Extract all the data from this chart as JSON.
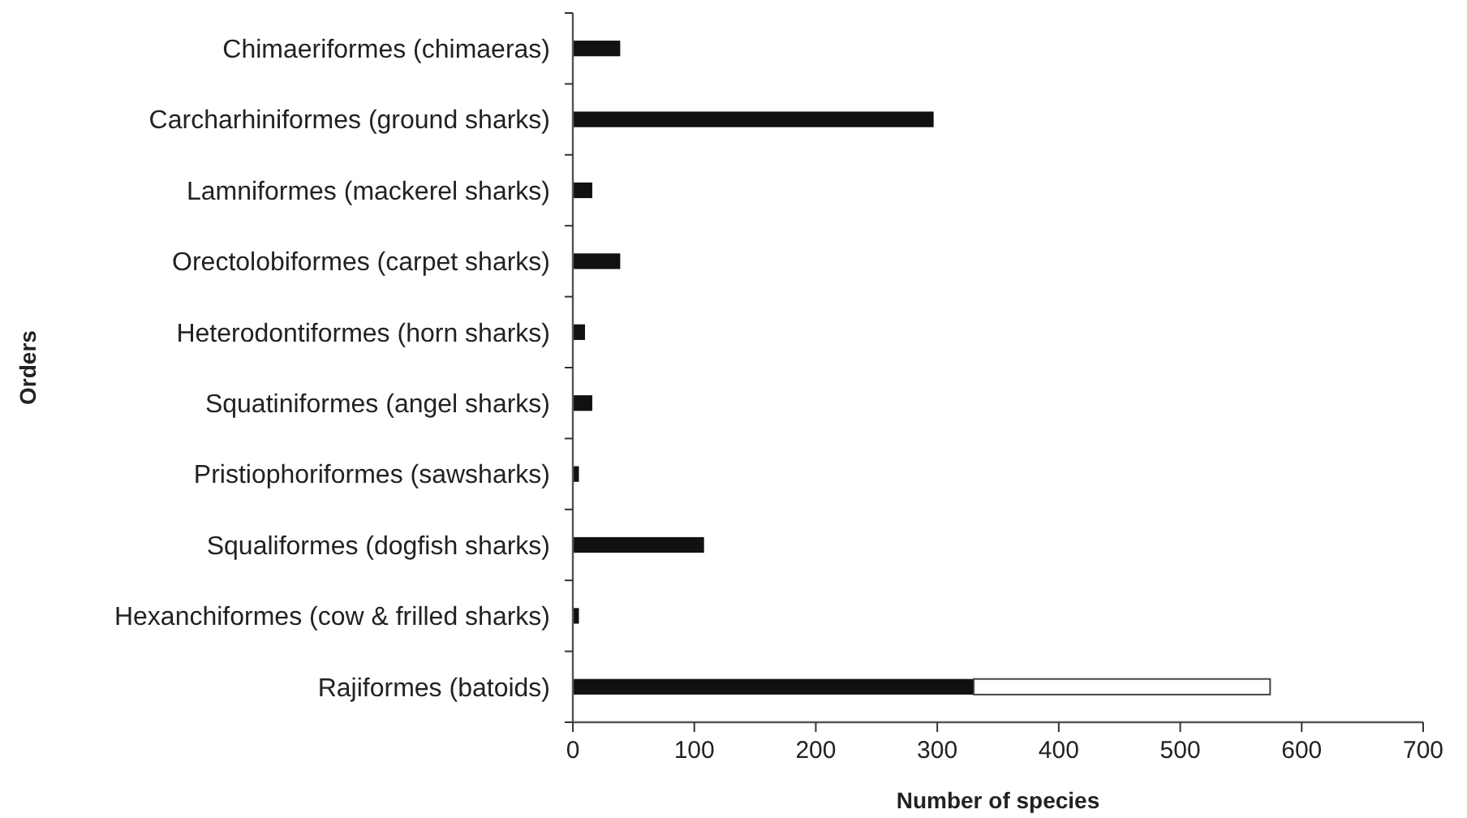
{
  "chart_data": {
    "type": "bar",
    "orientation": "horizontal",
    "stacked": true,
    "xlabel": "Number of species",
    "ylabel": "Orders",
    "categories": [
      "Chimaeriformes (chimaeras)",
      "Carcharhiniformes (ground sharks)",
      "Lamniformes (mackerel sharks)",
      "Orectolobiformes (carpet sharks)",
      "Heterodontiformes (horn sharks)",
      "Squatiniformes (angel sharks)",
      "Pristiophoriformes (sawsharks)",
      "Squaliformes (dogfish sharks)",
      "Hexanchiformes (cow & frilled sharks)",
      "Rajiformes (batoids)"
    ],
    "series": [
      {
        "color": "#111111",
        "values": [
          39,
          297,
          16,
          39,
          10,
          16,
          5,
          108,
          5,
          330
        ]
      },
      {
        "color": "#ffffff",
        "values": [
          null,
          null,
          null,
          null,
          null,
          null,
          null,
          null,
          null,
          244
        ]
      }
    ],
    "xlim": [
      0,
      700
    ],
    "xticks": [
      0,
      100,
      200,
      300,
      400,
      500,
      600,
      700
    ],
    "grid": false
  }
}
